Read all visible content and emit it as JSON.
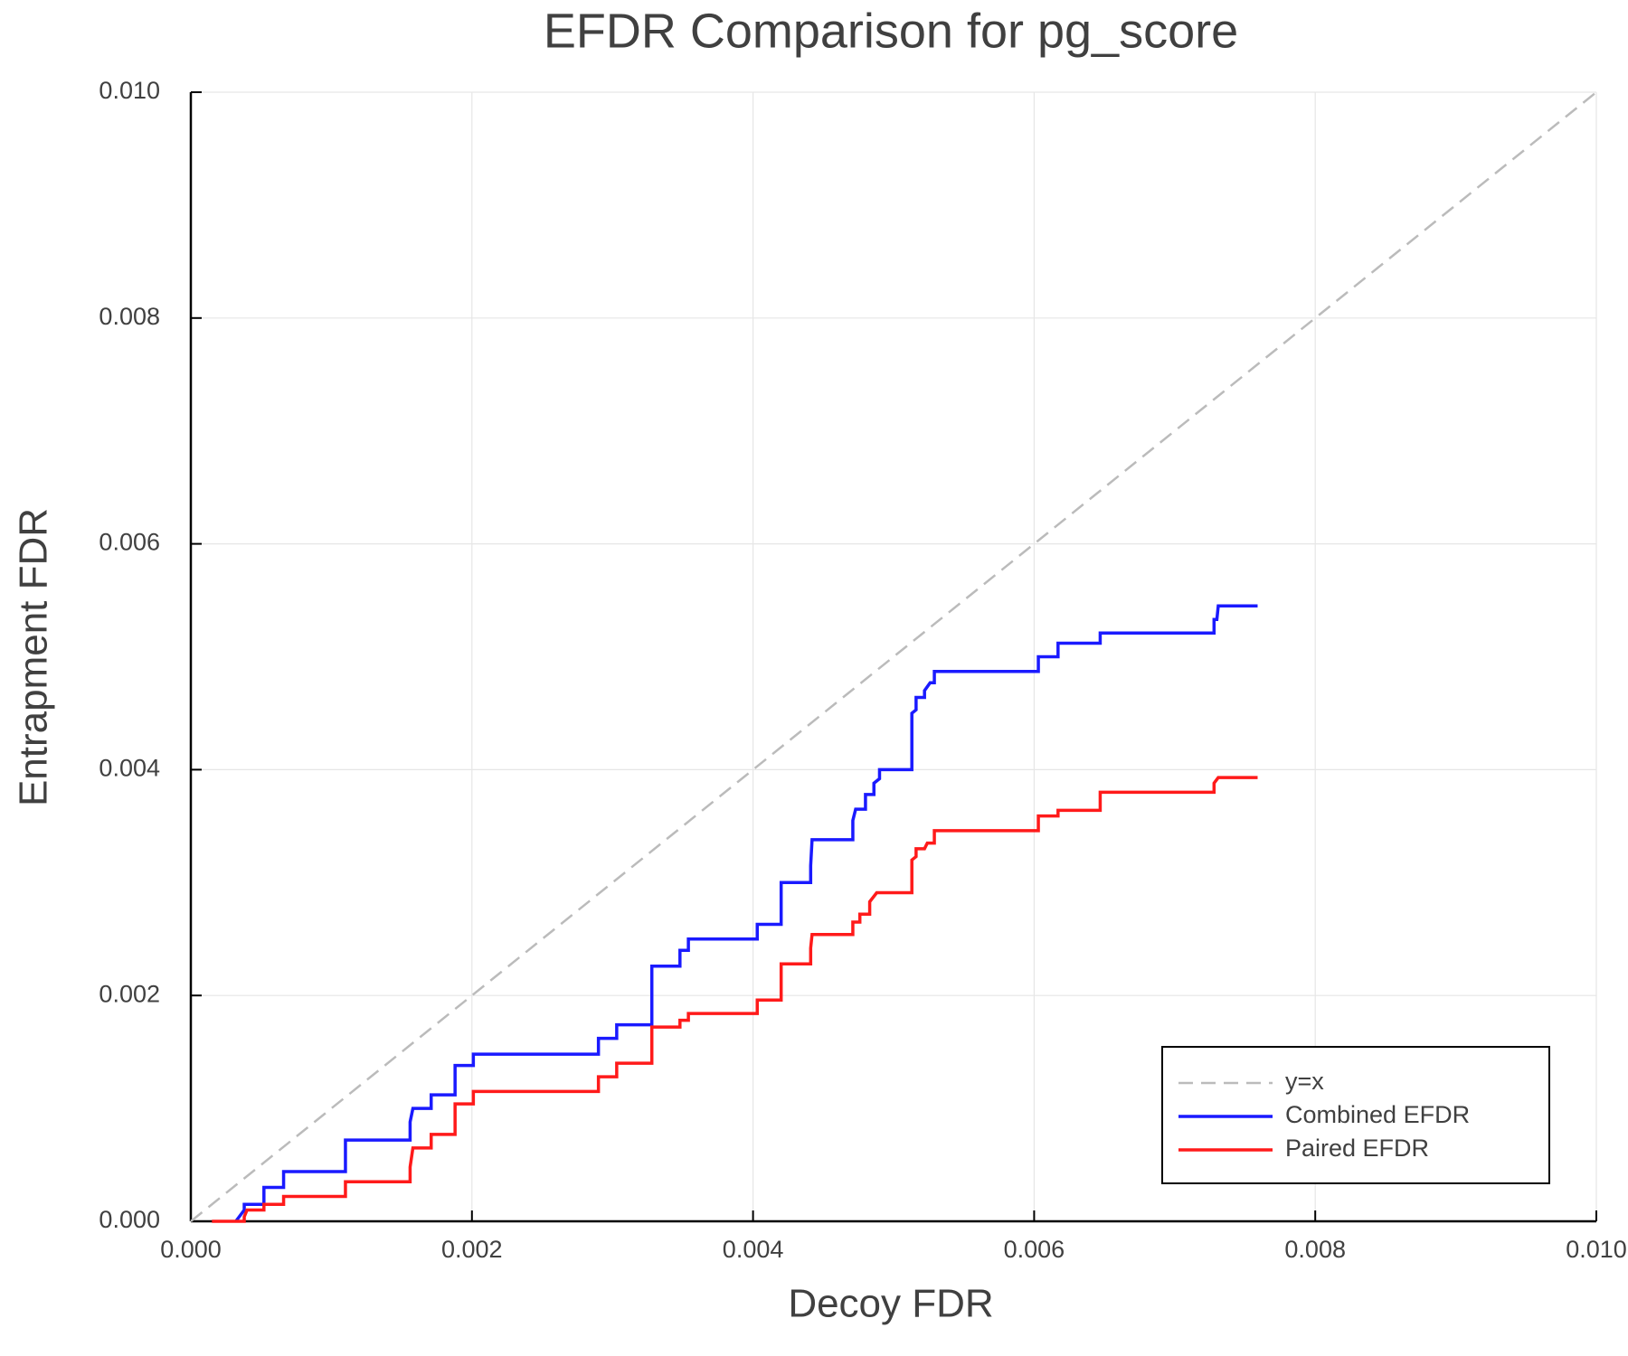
{
  "chart_data": {
    "type": "line",
    "title": "EFDR Comparison for pg_score",
    "x_label": "Decoy FDR",
    "y_label": "Entrapment FDR",
    "xlim": [
      0,
      0.01
    ],
    "ylim": [
      0,
      0.01
    ],
    "xticks": [
      {
        "value": 0,
        "label": "0.000"
      },
      0.002,
      0.004,
      0.006,
      0.008,
      {
        "value": 0.01,
        "label": "0.010"
      }
    ],
    "yticks": [
      {
        "value": 0,
        "label": "0.000"
      },
      0.002,
      0.004,
      0.006,
      0.008,
      {
        "value": 0.01,
        "label": "0.010"
      }
    ],
    "grid": true,
    "legend": "lower right",
    "series": [
      {
        "name": "y=x",
        "color": "#bbbbbb",
        "dashed": true,
        "x": [
          0,
          0.01
        ],
        "values": [
          0,
          0.01
        ]
      },
      {
        "name": "Combined EFDR",
        "color": "#1a1aff",
        "dashed": false,
        "x": [
          0.00032,
          0.00038,
          0.00038,
          0.00052,
          0.00052,
          0.00066,
          0.00066,
          0.0011,
          0.0011,
          0.00156,
          0.00156,
          0.00158,
          0.00171,
          0.00171,
          0.00188,
          0.00188,
          0.00201,
          0.00201,
          0.0029,
          0.0029,
          0.00303,
          0.00303,
          0.00328,
          0.00328,
          0.00348,
          0.00348,
          0.00354,
          0.00354,
          0.00403,
          0.00403,
          0.0042,
          0.0042,
          0.00441,
          0.00441,
          0.00442,
          0.00471,
          0.00471,
          0.00473,
          0.0048,
          0.0048,
          0.00486,
          0.00486,
          0.0049,
          0.0049,
          0.00513,
          0.00513,
          0.00516,
          0.00516,
          0.00522,
          0.00522,
          0.00526,
          0.00529,
          0.00529,
          0.00603,
          0.00603,
          0.00617,
          0.00617,
          0.00647,
          0.00647,
          0.00728,
          0.00728,
          0.0073,
          0.00731,
          0.00759
        ],
        "values": [
          0,
          0.0001,
          0.00015,
          0.00015,
          0.0003,
          0.0003,
          0.00044,
          0.00044,
          0.00072,
          0.00072,
          0.00088,
          0.001,
          0.001,
          0.00112,
          0.00112,
          0.00138,
          0.00138,
          0.00148,
          0.00148,
          0.00162,
          0.00162,
          0.00174,
          0.00174,
          0.00226,
          0.00226,
          0.0024,
          0.0024,
          0.0025,
          0.0025,
          0.00263,
          0.00263,
          0.003,
          0.003,
          0.00315,
          0.00338,
          0.00338,
          0.00355,
          0.00365,
          0.00365,
          0.00378,
          0.00378,
          0.00388,
          0.00392,
          0.004,
          0.004,
          0.0045,
          0.00453,
          0.00464,
          0.00464,
          0.0047,
          0.00477,
          0.00477,
          0.00487,
          0.00487,
          0.005,
          0.005,
          0.00512,
          0.00512,
          0.00521,
          0.00521,
          0.00533,
          0.00533,
          0.00545,
          0.00545
        ]
      },
      {
        "name": "Paired EFDR",
        "color": "#ff1a1a",
        "dashed": false,
        "x": [
          0.00015,
          0.00038,
          0.00038,
          0.0004,
          0.00052,
          0.00052,
          0.00066,
          0.00066,
          0.0011,
          0.0011,
          0.00156,
          0.00156,
          0.00158,
          0.00171,
          0.00171,
          0.00188,
          0.00188,
          0.00201,
          0.00201,
          0.0029,
          0.0029,
          0.00303,
          0.00303,
          0.00328,
          0.00328,
          0.00348,
          0.00348,
          0.00354,
          0.00354,
          0.00403,
          0.00403,
          0.0042,
          0.0042,
          0.00441,
          0.00441,
          0.00442,
          0.00471,
          0.00471,
          0.00476,
          0.00476,
          0.00483,
          0.00483,
          0.00488,
          0.00513,
          0.00513,
          0.00516,
          0.00516,
          0.00522,
          0.00524,
          0.00529,
          0.00529,
          0.00603,
          0.00603,
          0.00617,
          0.00617,
          0.00647,
          0.00647,
          0.00728,
          0.00728,
          0.00731,
          0.00759
        ],
        "values": [
          0,
          0,
          4e-05,
          0.0001,
          0.0001,
          0.00015,
          0.00015,
          0.00022,
          0.00022,
          0.00035,
          0.00035,
          0.00048,
          0.00065,
          0.00065,
          0.00077,
          0.00077,
          0.00104,
          0.00104,
          0.00115,
          0.00115,
          0.00128,
          0.00128,
          0.0014,
          0.0014,
          0.00172,
          0.00172,
          0.00178,
          0.00178,
          0.00184,
          0.00184,
          0.00196,
          0.00196,
          0.00228,
          0.00228,
          0.00242,
          0.00254,
          0.00254,
          0.00265,
          0.00265,
          0.00272,
          0.00272,
          0.00283,
          0.00291,
          0.00291,
          0.0032,
          0.00323,
          0.0033,
          0.0033,
          0.00335,
          0.00335,
          0.00346,
          0.00346,
          0.00359,
          0.00359,
          0.00364,
          0.00364,
          0.0038,
          0.0038,
          0.00388,
          0.00393,
          0.00393
        ]
      }
    ]
  }
}
